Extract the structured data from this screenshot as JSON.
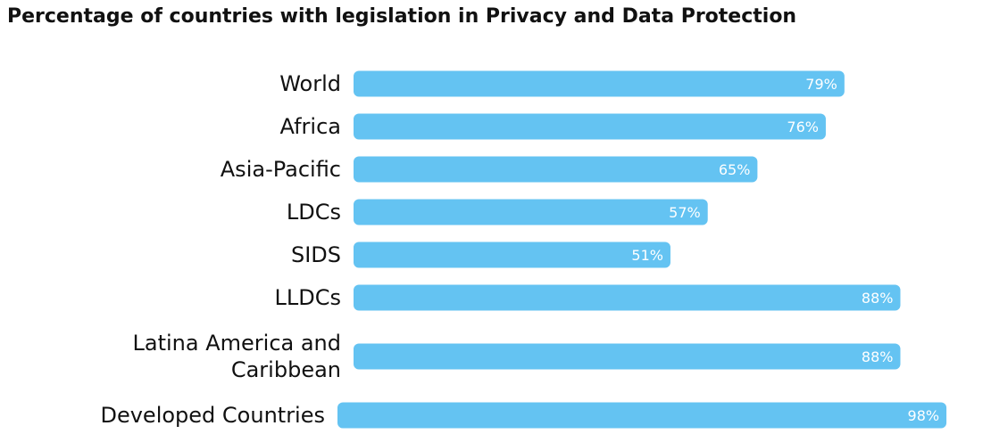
{
  "chart_data": {
    "type": "bar",
    "orientation": "horizontal",
    "title": "Percentage of countries with legislation in Privacy and Data Protection",
    "categories": [
      [
        "World"
      ],
      [
        "Africa"
      ],
      [
        "Asia-Pacific"
      ],
      [
        "LDCs"
      ],
      [
        "SIDS"
      ],
      [
        "LLDCs"
      ],
      [
        "Latina America and",
        "Caribbean"
      ],
      [
        "Developed Countries"
      ]
    ],
    "values": [
      79,
      76,
      65,
      57,
      51,
      88,
      88,
      98
    ],
    "value_labels": [
      "79%",
      "76%",
      "65%",
      "57%",
      "51%",
      "88%",
      "88%",
      "98%"
    ],
    "xlim": [
      0,
      100
    ],
    "bar_color": "#64C3F2",
    "label_color": "#ffffff",
    "grid": false,
    "legend": "none"
  }
}
